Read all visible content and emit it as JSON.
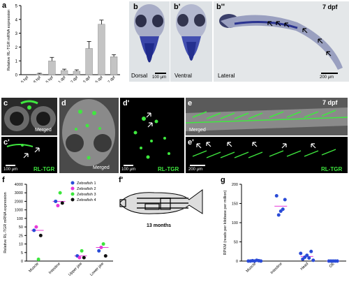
{
  "panel_labels": {
    "a": "a",
    "b": "b",
    "b1": "b'",
    "b2": "b''",
    "c": "c",
    "c1": "c'",
    "d": "d",
    "d1": "d'",
    "e": "e",
    "e1": "e'",
    "f": "f",
    "f1": "f'",
    "g": "g"
  },
  "panel_b": {
    "dorsal": "Dorsal",
    "ventral": "Ventral",
    "lateral": "Lateral",
    "scale1": "100 µm",
    "scale2": "200 µm",
    "age": "7 dpf"
  },
  "panel_c": {
    "merged": "Merged",
    "rltgr": "RL-TGR",
    "scale": "100 µm"
  },
  "panel_d": {
    "merged": "Merged",
    "rltgr": "RL-TGR",
    "scale": "100 µm"
  },
  "panel_e": {
    "merged": "Merged",
    "rltgr": "RL-TGR",
    "scale": "200 µm",
    "age": "7 dpf"
  },
  "panel_f1": {
    "caption": "13 months"
  },
  "chart_data": [
    {
      "type": "bar",
      "panel": "a",
      "ylabel": "Relative RL-TGR mRNA expression",
      "categories": [
        "3.5 hpf",
        "8 hpf",
        "15 hpf",
        "1 dpf",
        "2 dpf",
        "3 dpf",
        "5 dpf",
        "7 dpf"
      ],
      "values": [
        0,
        0.05,
        1.0,
        0.3,
        0.25,
        1.9,
        3.65,
        1.3
      ],
      "errors": [
        0,
        0.05,
        0.25,
        0.1,
        0.1,
        0.5,
        0.3,
        0.15
      ],
      "ylim": [
        0,
        5
      ],
      "yticks": [
        "0",
        "1",
        "2",
        "3",
        "4",
        "5"
      ],
      "color": "#c4c4c4"
    },
    {
      "type": "scatter",
      "panel": "f",
      "ylabel": "Relative RL-TGR mRNA expression",
      "categories": [
        "Muscle",
        "Intestine",
        "Upper jaw",
        "Lower jaw"
      ],
      "yticks": [
        "0",
        "5",
        "10",
        "25",
        "50",
        "100",
        "1000",
        "2000",
        "3000",
        "4000"
      ],
      "series": [
        {
          "name": "Zebrafish 1",
          "color": "#2a4bd7",
          "values": [
            40,
            2000,
            3,
            6
          ]
        },
        {
          "name": "Zebrafish 2",
          "color": "#e838d8",
          "values": [
            50,
            1500,
            2,
            8
          ]
        },
        {
          "name": "Zebrafish 3",
          "color": "#3ce63c",
          "values": [
            1,
            3000,
            6,
            10
          ]
        },
        {
          "name": "Zebrafish 4",
          "color": "#111111",
          "values": [
            25,
            1800,
            2,
            3
          ]
        }
      ]
    },
    {
      "type": "scatter",
      "panel": "g",
      "ylabel": "RPKM (reads per kilobase per million)",
      "categories": [
        "Muscle",
        "Intestine",
        "Head",
        "OE"
      ],
      "ylim": [
        0,
        200
      ],
      "yticks": [
        "0",
        "50",
        "100",
        "150",
        "200"
      ],
      "color": "#2a4bd7",
      "values": [
        [
          0,
          0,
          1,
          0,
          2,
          1,
          0
        ],
        [
          170,
          120,
          130,
          135,
          160
        ],
        [
          20,
          5,
          10,
          15,
          8,
          25,
          2
        ],
        [
          0,
          0,
          0,
          0,
          0
        ]
      ]
    }
  ]
}
